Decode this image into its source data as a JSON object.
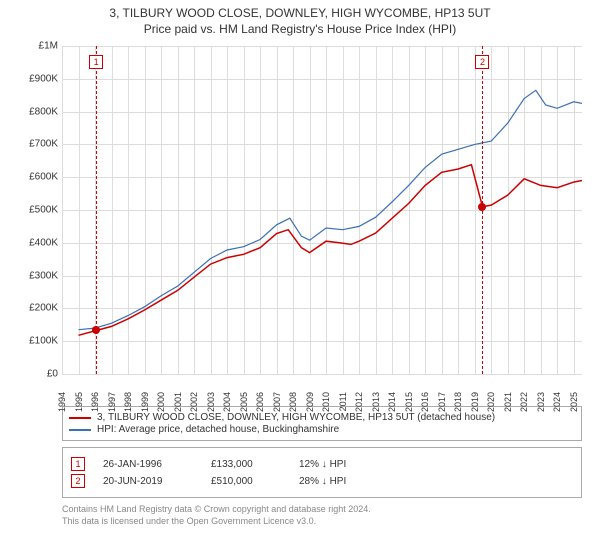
{
  "title": {
    "line1": "3, TILBURY WOOD CLOSE, DOWNLEY, HIGH WYCOMBE, HP13 5UT",
    "line2": "Price paid vs. HM Land Registry's House Price Index (HPI)",
    "fontsize": 12,
    "color": "#333333"
  },
  "chart": {
    "type": "line",
    "background_color": "#ffffff",
    "grid_color": "#dcdcdc",
    "x": {
      "min": 1994,
      "max": 2025.5,
      "ticks": [
        1994,
        1995,
        1996,
        1997,
        1998,
        1999,
        2000,
        2001,
        2002,
        2003,
        2004,
        2005,
        2006,
        2007,
        2008,
        2009,
        2010,
        2011,
        2012,
        2013,
        2014,
        2015,
        2016,
        2017,
        2018,
        2019,
        2020,
        2021,
        2022,
        2023,
        2024,
        2025
      ],
      "tick_fontsize": 9,
      "rotation": -90
    },
    "y": {
      "min": 0,
      "max": 1000000,
      "ticks": [
        0,
        100000,
        200000,
        300000,
        400000,
        500000,
        600000,
        700000,
        800000,
        900000,
        1000000
      ],
      "tick_labels": [
        "£0",
        "£100K",
        "£200K",
        "£300K",
        "£400K",
        "£500K",
        "£600K",
        "£700K",
        "£800K",
        "£900K",
        "£1M"
      ],
      "tick_fontsize": 10
    },
    "series": [
      {
        "name": "price_paid",
        "label": "3, TILBURY WOOD CLOSE, DOWNLEY, HIGH WYCOMBE, HP13 5UT (detached house)",
        "color": "#cc0000",
        "line_width": 1.5,
        "points": [
          [
            1995.0,
            118000
          ],
          [
            1996.1,
            133000
          ],
          [
            1997,
            145000
          ],
          [
            1998,
            168000
          ],
          [
            1999,
            195000
          ],
          [
            2000,
            225000
          ],
          [
            2001,
            255000
          ],
          [
            2002,
            295000
          ],
          [
            2003,
            335000
          ],
          [
            2004,
            355000
          ],
          [
            2005,
            365000
          ],
          [
            2006,
            385000
          ],
          [
            2007,
            428000
          ],
          [
            2007.7,
            440000
          ],
          [
            2008.5,
            385000
          ],
          [
            2009,
            370000
          ],
          [
            2010,
            405000
          ],
          [
            2010.8,
            400000
          ],
          [
            2011.5,
            395000
          ],
          [
            2012,
            405000
          ],
          [
            2013,
            430000
          ],
          [
            2014,
            475000
          ],
          [
            2015,
            520000
          ],
          [
            2016,
            575000
          ],
          [
            2017,
            615000
          ],
          [
            2018,
            625000
          ],
          [
            2018.8,
            638000
          ],
          [
            2019.47,
            510000
          ],
          [
            2020,
            515000
          ],
          [
            2021,
            545000
          ],
          [
            2022,
            595000
          ],
          [
            2023,
            575000
          ],
          [
            2024,
            568000
          ],
          [
            2025,
            585000
          ],
          [
            2025.5,
            590000
          ]
        ]
      },
      {
        "name": "hpi",
        "label": "HPI: Average price, detached house, Buckinghamshire",
        "color": "#3b6fb6",
        "line_width": 1.2,
        "points": [
          [
            1995,
            135000
          ],
          [
            1996,
            140000
          ],
          [
            1997,
            155000
          ],
          [
            1998,
            178000
          ],
          [
            1999,
            205000
          ],
          [
            2000,
            238000
          ],
          [
            2001,
            268000
          ],
          [
            2002,
            310000
          ],
          [
            2003,
            352000
          ],
          [
            2004,
            378000
          ],
          [
            2005,
            388000
          ],
          [
            2006,
            410000
          ],
          [
            2007,
            455000
          ],
          [
            2007.8,
            475000
          ],
          [
            2008.5,
            420000
          ],
          [
            2009,
            408000
          ],
          [
            2010,
            445000
          ],
          [
            2011,
            440000
          ],
          [
            2012,
            450000
          ],
          [
            2013,
            478000
          ],
          [
            2014,
            525000
          ],
          [
            2015,
            575000
          ],
          [
            2016,
            630000
          ],
          [
            2017,
            670000
          ],
          [
            2018,
            685000
          ],
          [
            2019,
            700000
          ],
          [
            2020,
            710000
          ],
          [
            2021,
            765000
          ],
          [
            2022,
            840000
          ],
          [
            2022.7,
            865000
          ],
          [
            2023.3,
            820000
          ],
          [
            2024,
            810000
          ],
          [
            2025,
            830000
          ],
          [
            2025.5,
            825000
          ]
        ]
      }
    ],
    "markers": [
      {
        "id": "1",
        "x": 1996.07,
        "y_box": 950000,
        "y_dot": 133000,
        "color": "#cc0000"
      },
      {
        "id": "2",
        "x": 2019.47,
        "y_box": 950000,
        "y_dot": 510000,
        "color": "#cc0000"
      }
    ]
  },
  "legend": {
    "border_color": "#aaaaaa",
    "fontsize": 10
  },
  "events": [
    {
      "id": "1",
      "color": "#cc0000",
      "date": "26-JAN-1996",
      "price": "£133,000",
      "delta": "12% ↓ HPI"
    },
    {
      "id": "2",
      "color": "#cc0000",
      "date": "20-JUN-2019",
      "price": "£510,000",
      "delta": "28% ↓ HPI"
    }
  ],
  "footnote": {
    "line1": "Contains HM Land Registry data © Crown copyright and database right 2024.",
    "line2": "This data is licensed under the Open Government Licence v3.0.",
    "color": "#888888",
    "fontsize": 9
  }
}
